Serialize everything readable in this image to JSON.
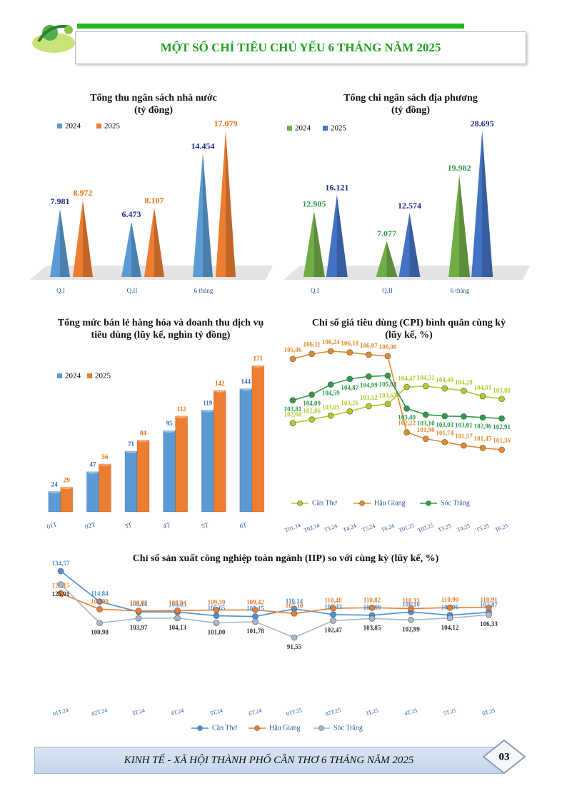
{
  "header": {
    "title": "MỘT SỐ CHỈ TIÊU CHỦ YẾU 6 THÁNG NĂM 2025"
  },
  "chart_data": [
    {
      "type": "bar",
      "title": "Tổng thu ngân sách nhà nước",
      "subtitle": "(tỷ đồng)",
      "categories": [
        "Q.I",
        "Q.II",
        "6 tháng"
      ],
      "series": [
        {
          "name": "2024",
          "color": "#5b9bd5",
          "values": [
            7981,
            6473,
            14454
          ],
          "value_labels": [
            "7.981",
            "6.473",
            "14.454"
          ]
        },
        {
          "name": "2025",
          "color": "#ed7d31",
          "values": [
            8972,
            8107,
            17079
          ],
          "value_labels": [
            "8.972",
            "8.107",
            "17.079"
          ]
        }
      ]
    },
    {
      "type": "bar",
      "title": "Tổng chi ngân sách địa phương",
      "subtitle": "(tỷ đồng)",
      "categories": [
        "Q.I",
        "Q.II",
        "6 tháng"
      ],
      "series": [
        {
          "name": "2024",
          "color": "#70ad47",
          "values": [
            12905,
            7077,
            19982
          ],
          "value_labels": [
            "12.905",
            "7.077",
            "19.982"
          ]
        },
        {
          "name": "2025",
          "color": "#4472c4",
          "values": [
            16121,
            12574,
            28695
          ],
          "value_labels": [
            "16.121",
            "12.574",
            "28.695"
          ]
        }
      ]
    },
    {
      "type": "bar",
      "title": "Tổng mức bán lẻ hàng hóa và doanh thu dịch vụ tiêu dùng (lũy kế, nghìn tỷ đồng)",
      "categories": [
        "01T",
        "02T",
        "3T",
        "4T",
        "5T",
        "6T"
      ],
      "series": [
        {
          "name": "2024",
          "color": "#5b9bd5",
          "values": [
            24,
            47,
            71,
            95,
            119,
            144
          ]
        },
        {
          "name": "2025",
          "color": "#ed7d31",
          "values": [
            29,
            56,
            84,
            112,
            142,
            171
          ]
        }
      ]
    },
    {
      "type": "line",
      "title": "Chỉ số giá tiêu dùng (CPI) bình quân cùng kỳ",
      "subtitle": "(lũy kế, %)",
      "categories": [
        "T01.24",
        "T02.24",
        "T3.24",
        "T4.24",
        "T5.24",
        "T6.24",
        "T01.25",
        "T02.25",
        "T3.25",
        "T4.25",
        "T5.25",
        "T6.25"
      ],
      "series": [
        {
          "name": "Cần Thơ",
          "color": "#b5c92a",
          "values": [
            102.68,
            102.86,
            103.05,
            103.26,
            103.52,
            103.63,
            104.47,
            104.51,
            104.4,
            104.28,
            104.01,
            103.88
          ],
          "value_labels": [
            "102,68",
            "102,86",
            "103,05",
            "103,26",
            "103,52",
            "103,63",
            "104,47",
            "104,51",
            "104,40",
            "104,28",
            "104,01",
            "103,88"
          ]
        },
        {
          "name": "Hậu Giang",
          "color": "#e38b2c",
          "values": [
            105.86,
            106.11,
            106.24,
            106.18,
            106.07,
            106.0,
            102.22,
            101.9,
            101.74,
            101.57,
            101.45,
            101.36
          ],
          "value_labels": [
            "105,86",
            "106,11",
            "106,24",
            "106,18",
            "106,07",
            "106,00",
            "102,22",
            "101,90",
            "101,74",
            "101,57",
            "101,45",
            "101,36"
          ]
        },
        {
          "name": "Sóc Trăng",
          "color": "#2e9b48",
          "values": [
            103.81,
            104.09,
            104.59,
            104.87,
            104.99,
            105.03,
            103.4,
            103.1,
            103.03,
            103.01,
            102.96,
            102.91
          ],
          "value_labels": [
            "103,81",
            "104,09",
            "104,59",
            "104,87",
            "104,99",
            "105,03",
            "103,40",
            "103,10",
            "103,03",
            "103,01",
            "102,96",
            "102,91"
          ]
        }
      ]
    },
    {
      "type": "line",
      "title": "Chỉ số sản xuất công nghiệp toàn ngành (IIP) so với cùng kỳ (lũy kế, %)",
      "categories": [
        "01T.24",
        "02T.24",
        "3T.24",
        "4T.24",
        "5T.24",
        "6T.24",
        "01T.25",
        "02T.25",
        "3T.25",
        "4T.25",
        "5T.25",
        "6T.25"
      ],
      "series": [
        {
          "name": "Cần Thơ",
          "color": "#4a90d9",
          "values": [
            134.57,
            114.84,
            108.18,
            108.05,
            105.65,
            105.15,
            110.14,
            106.43,
            105.99,
            108.1,
            106.06,
            107.87
          ],
          "value_labels": [
            "134,57",
            "114,84",
            "108,18",
            "108,05",
            "105,65",
            "105,15",
            "110,14",
            "106,43",
            "105,99",
            "108,10",
            "106,06",
            "107,87"
          ]
        },
        {
          "name": "Hậu Giang",
          "color": "#ed7d31",
          "values": [
            120.15,
            109.9,
            108.82,
            108.94,
            109.39,
            109.42,
            107.1,
            110.48,
            110.82,
            110.33,
            110.9,
            110.91
          ],
          "value_labels": [
            "120,15",
            "109,90",
            "108,82",
            "108,94",
            "109,39",
            "109,42",
            "107,10",
            "110,48",
            "110,82",
            "110,33",
            "110,90",
            "110,91"
          ]
        },
        {
          "name": "Sóc Trăng",
          "color": "#a9b8cc",
          "values": [
            125.91,
            100.98,
            103.97,
            104.13,
            101.0,
            101.78,
            91.55,
            102.47,
            103.85,
            102.99,
            104.12,
            106.33
          ],
          "value_labels": [
            "125,91",
            "100,98",
            "103,97",
            "104,13",
            "101,00",
            "101,78",
            "91,55",
            "102,47",
            "103,85",
            "102,99",
            "104,12",
            "106,33"
          ]
        }
      ]
    }
  ],
  "footer": {
    "text": "KINH TẾ - XÃ HỘI THÀNH PHỐ CẦN THƠ 6 THÁNG NĂM 2025",
    "page_number": "03"
  }
}
